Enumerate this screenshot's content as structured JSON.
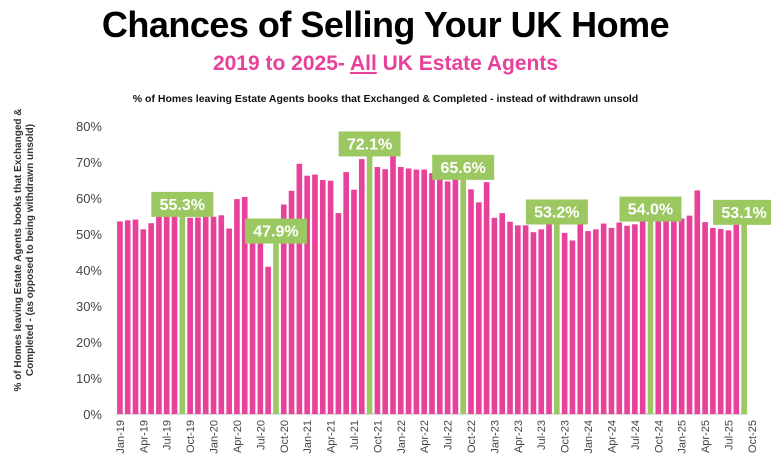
{
  "title": "Chances of Selling Your UK Home",
  "subtitle_prefix": "2019 to 2025- ",
  "subtitle_emph": "All",
  "subtitle_suffix": " UK Estate Agents",
  "caption": "% of Homes leaving Estate Agents books that Exchanged & Completed - instead of withdrawn unsold",
  "colors": {
    "bar": "#e8419a",
    "highlight": "#9cc862",
    "label_text": "#ffffff"
  },
  "chart_data": {
    "type": "bar",
    "title": "% of Homes leaving Estate Agents books that Exchanged & Completed - instead of withdrawn unsold",
    "ylabel": "% of Homes leaving Estate Agents books that Exchanged & Completed - (as opposed to being withdrawn unsold)",
    "ylim": [
      0,
      80
    ],
    "yticks": [
      "0%",
      "10%",
      "20%",
      "30%",
      "40%",
      "50%",
      "60%",
      "70%",
      "80%"
    ],
    "grid": false,
    "x_tick_labels": [
      "Jan-19",
      "Apr-19",
      "Jul-19",
      "Oct-19",
      "Jan-20",
      "Apr-20",
      "Jul-20",
      "Oct-20",
      "Jan-21",
      "Apr-21",
      "Jul-21",
      "Oct-21",
      "Jan-22",
      "Apr-22",
      "Jul-22",
      "Oct-22",
      "Jan-23",
      "Apr-23",
      "Jul-23",
      "Oct-23",
      "Jan-24",
      "Apr-24",
      "Jul-24",
      "Oct-24",
      "Jan-25",
      "Apr-25",
      "Jul-25",
      "Oct-25"
    ],
    "values": [
      53.5,
      53.8,
      54.0,
      51.3,
      53.0,
      55.7,
      55.4,
      58.0,
      55.3,
      54.5,
      54.6,
      60.5,
      54.8,
      55.2,
      51.5,
      59.7,
      60.3,
      51.8,
      49.3,
      40.9,
      47.9,
      58.2,
      62.0,
      69.5,
      66.2,
      66.5,
      65.0,
      64.8,
      55.8,
      67.2,
      62.3,
      70.8,
      72.1,
      68.6,
      68.0,
      73.8,
      68.6,
      68.2,
      67.9,
      67.9,
      66.9,
      67.4,
      64.6,
      66.5,
      65.6,
      62.4,
      58.8,
      64.4,
      54.5,
      55.8,
      53.4,
      52.4,
      52.4,
      50.5,
      51.3,
      53.8,
      53.2,
      50.3,
      48.2,
      57.7,
      50.8,
      51.3,
      52.9,
      51.7,
      53.2,
      52.3,
      52.7,
      56.1,
      54.0,
      53.5,
      54.0,
      59.6,
      54.3,
      55.1,
      62.1,
      53.3,
      51.7,
      51.4,
      51.0,
      55.8,
      53.1
    ],
    "highlights": [
      {
        "index": 8,
        "label": "55.3%"
      },
      {
        "index": 20,
        "label": "47.9%"
      },
      {
        "index": 32,
        "label": "72.1%"
      },
      {
        "index": 44,
        "label": "65.6%"
      },
      {
        "index": 56,
        "label": "53.2%"
      },
      {
        "index": 68,
        "label": "54.0%"
      },
      {
        "index": 80,
        "label": "53.1%"
      }
    ]
  }
}
